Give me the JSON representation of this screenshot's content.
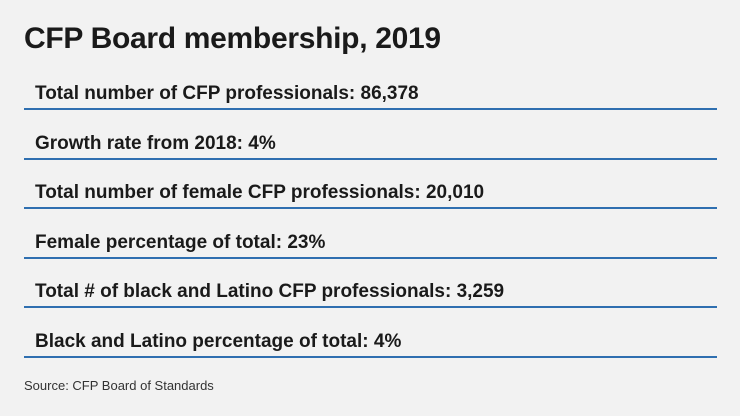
{
  "title": "CFP Board membership, 2019",
  "stats": [
    {
      "text": "Total number of CFP professionals: 86,378"
    },
    {
      "text": "Growth rate from 2018: 4%"
    },
    {
      "text": "Total number of female CFP professionals: 20,010"
    },
    {
      "text": "Female percentage of total: 23%"
    },
    {
      "text": "Total # of black and Latino CFP professionals: 3,259"
    },
    {
      "text": "Black and Latino percentage of total: 4%"
    }
  ],
  "source": "Source: CFP Board of Standards",
  "colors": {
    "background": "#f2f2f2",
    "divider": "#2f6fb0",
    "text": "#1a1a1a"
  }
}
